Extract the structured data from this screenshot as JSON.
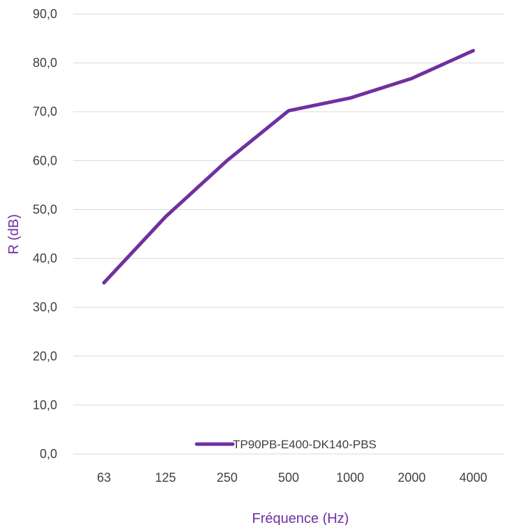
{
  "chart_data": {
    "type": "line",
    "categories": [
      "63",
      "125",
      "250",
      "500",
      "1000",
      "2000",
      "4000"
    ],
    "series": [
      {
        "name": "TP90PB-E400-DK140-PBS",
        "values": [
          35.0,
          48.5,
          60.0,
          70.2,
          72.8,
          76.8,
          82.5
        ],
        "color": "#7030A0"
      }
    ],
    "title": "",
    "xlabel": "Fréquence (Hz)",
    "ylabel": "R (dB)",
    "ylim": [
      0,
      90
    ],
    "yticks": [
      "0,0",
      "10,0",
      "20,0",
      "30,0",
      "40,0",
      "50,0",
      "60,0",
      "70,0",
      "80,0",
      "90,0"
    ],
    "grid": true,
    "legend_position": "bottom-center-inside",
    "axis_title_color": "#7030A0",
    "gridline_color": "#D9D9D9",
    "tick_color": "#404040"
  }
}
